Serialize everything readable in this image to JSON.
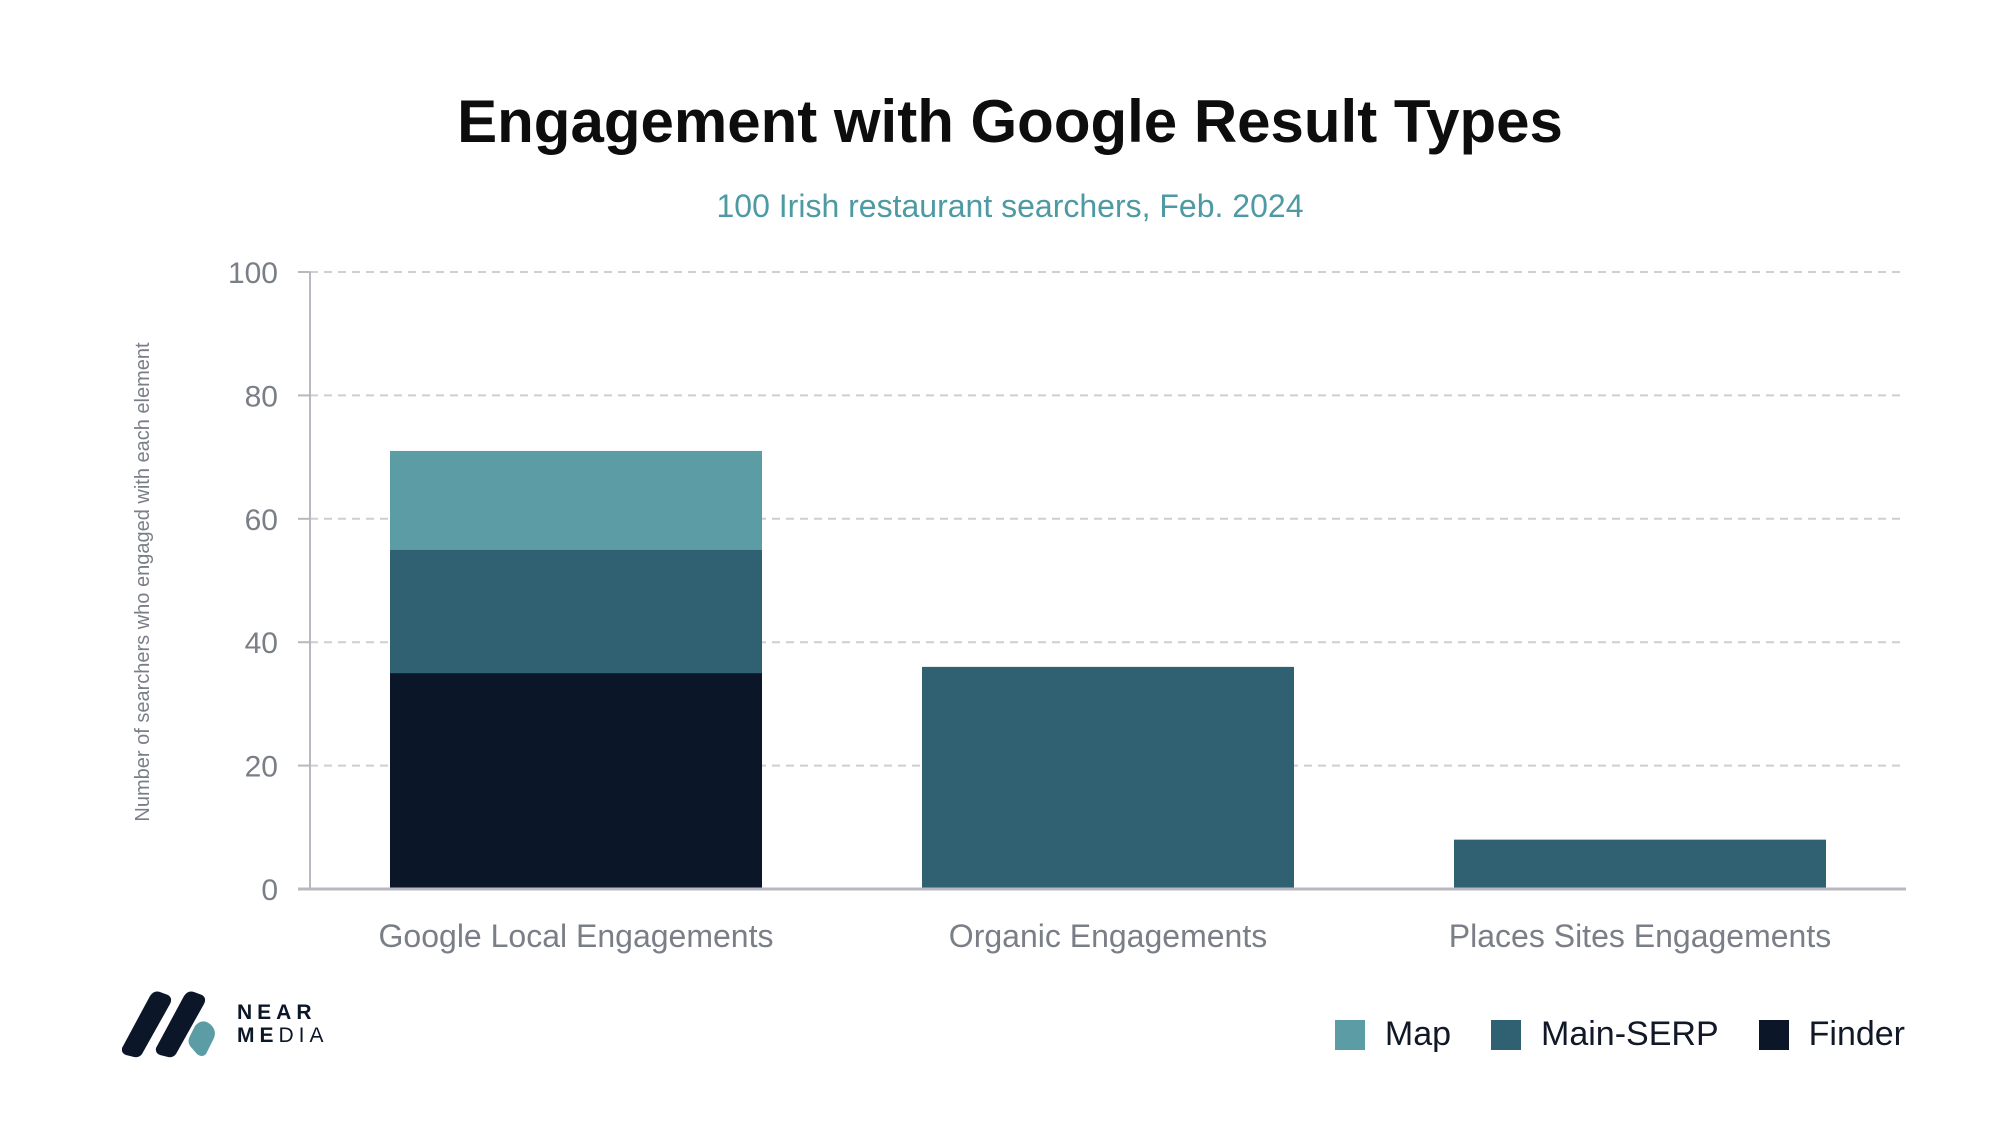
{
  "chart_data": {
    "type": "bar",
    "stacked": true,
    "title": "Engagement with Google Result Types",
    "subtitle": "100 Irish restaurant searchers, Feb. 2024",
    "xlabel": "",
    "ylabel": "Number of searchers who engaged with each element",
    "ylim": [
      0,
      100
    ],
    "yticks": [
      0,
      20,
      40,
      60,
      80,
      100
    ],
    "grid": true,
    "categories": [
      "Google Local Engagements",
      "Organic Engagements",
      "Places Sites Engagements"
    ],
    "series": [
      {
        "name": "Finder",
        "color": "#0b1628",
        "values": [
          35,
          0,
          0
        ]
      },
      {
        "name": "Main-SERP",
        "color": "#306173",
        "values": [
          20,
          36,
          8
        ]
      },
      {
        "name": "Map",
        "color": "#5c9ca5",
        "values": [
          16,
          0,
          0
        ]
      }
    ],
    "legend": {
      "placement": "bottom-right",
      "order": [
        "Map",
        "Main-SERP",
        "Finder"
      ]
    }
  },
  "colors": {
    "title": "#0d0d0d",
    "subtitle": "#4d9aa3",
    "axis_text": "#7a7e87",
    "grid": "#cfcfcf",
    "axis": "#b8b8c0"
  },
  "brand": {
    "line1": "NEAR",
    "line2_bold": "ME",
    "line2_light": "DIA"
  }
}
